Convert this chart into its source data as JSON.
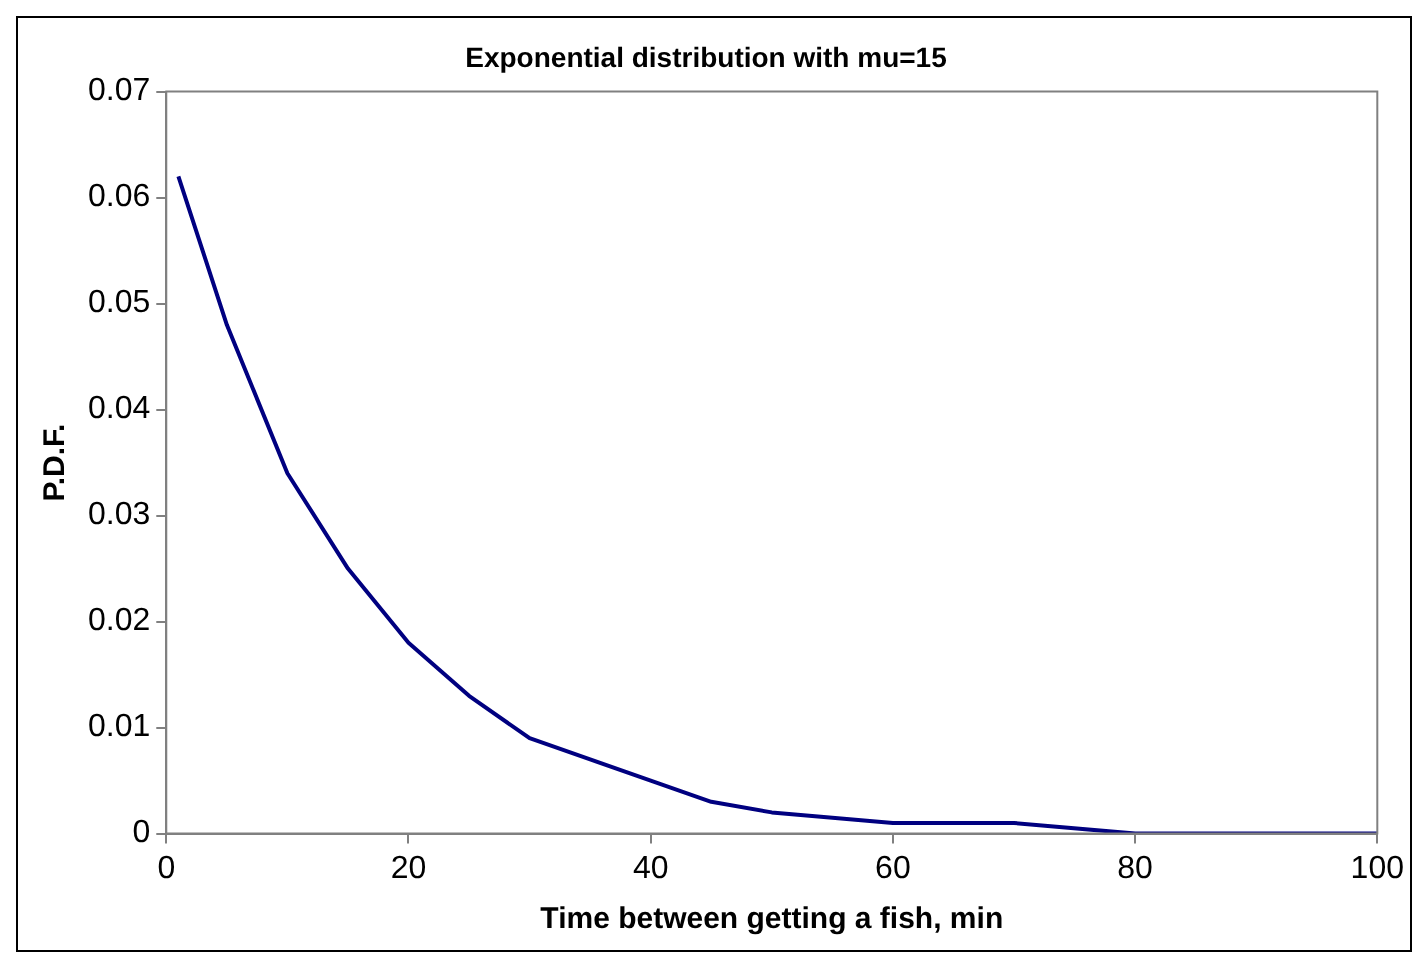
{
  "chart_data": {
    "type": "line",
    "title": "Exponential distribution with mu=15",
    "xlabel": "Time between getting a fish, min",
    "ylabel": "P.D.F.",
    "x": [
      1,
      5,
      10,
      15,
      20,
      25,
      30,
      35,
      40,
      45,
      50,
      60,
      70,
      80,
      90,
      100
    ],
    "series": [
      {
        "color": "#000080",
        "values": [
          0.062,
          0.048,
          0.034,
          0.025,
          0.018,
          0.013,
          0.009,
          0.007,
          0.005,
          0.003,
          0.002,
          0.001,
          0.001,
          0,
          0,
          0
        ]
      }
    ],
    "xlim": [
      0,
      100
    ],
    "xticks": [
      0,
      20,
      40,
      60,
      80,
      100
    ],
    "ylim": [
      0,
      0.07
    ],
    "yticks": [
      0,
      0.01,
      0.02,
      0.03,
      0.04,
      0.05,
      0.06,
      0.07
    ],
    "grid": false,
    "legend": false,
    "marker": "none",
    "line_style": "solid"
  }
}
